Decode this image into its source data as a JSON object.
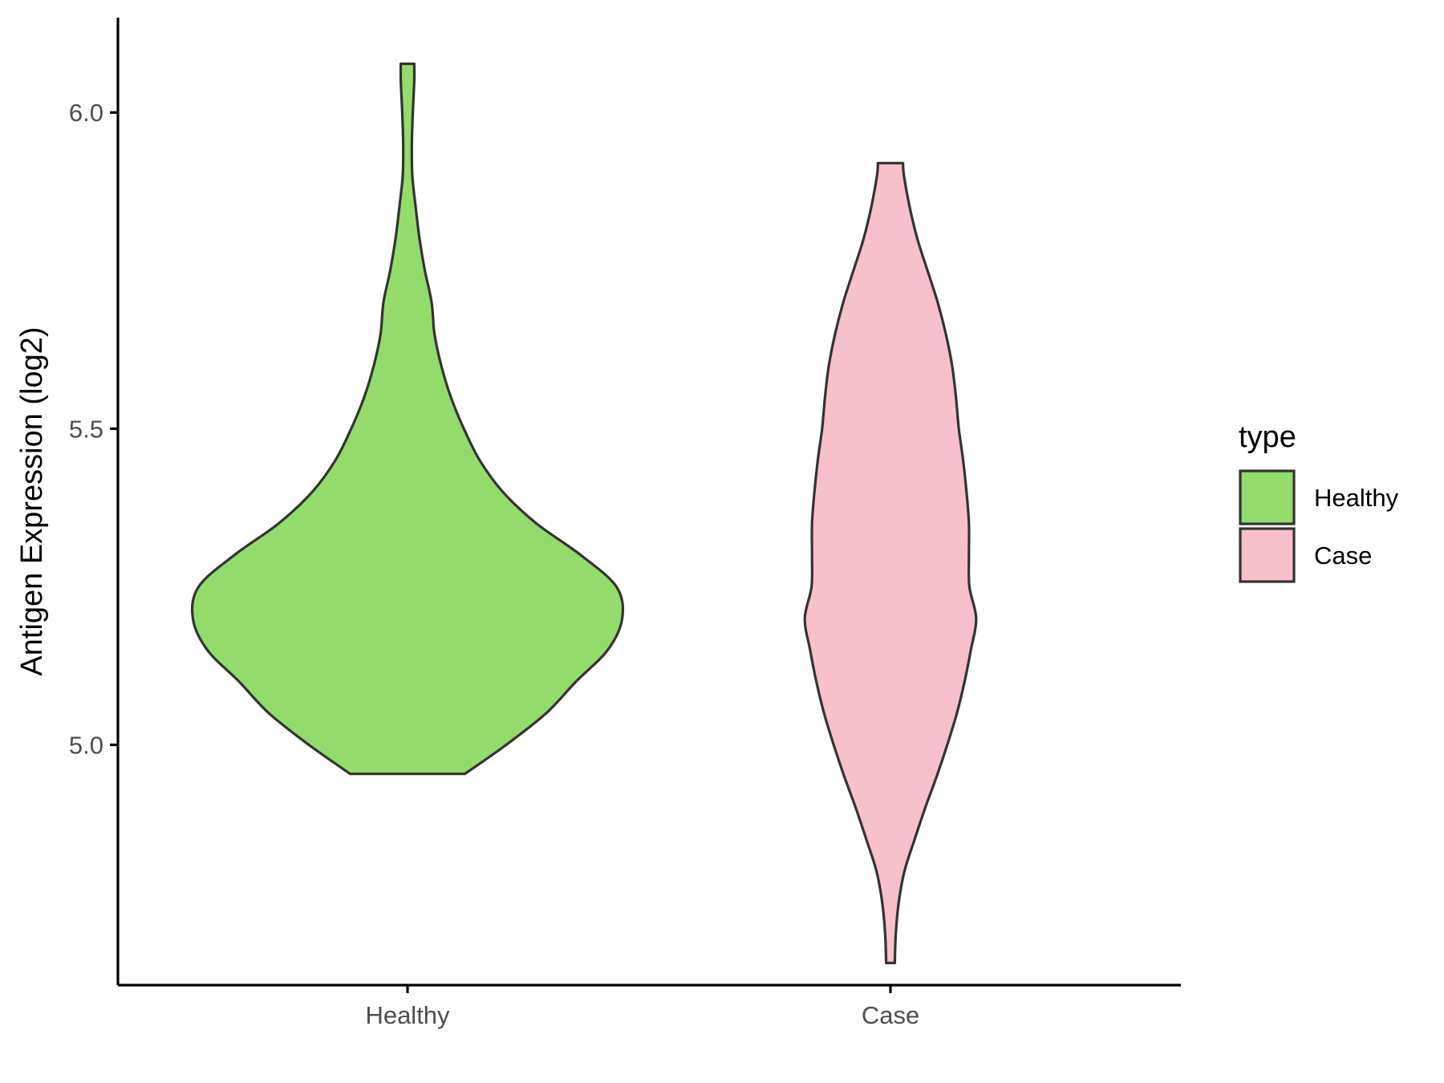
{
  "chart_data": {
    "type": "violin",
    "title": "",
    "xlabel": "",
    "ylabel": "Antigen Expression (log2)",
    "ylim": [
      4.62,
      6.15
    ],
    "yticks": [
      5.0,
      5.5,
      6.0
    ],
    "ytick_labels": [
      "5.0",
      "5.5",
      "6.0"
    ],
    "categories": [
      "Healthy",
      "Case"
    ],
    "grid": false,
    "legend": {
      "title": "type",
      "position": "right",
      "entries": [
        {
          "label": "Healthy",
          "color": "#93DC6B"
        },
        {
          "label": "Case",
          "color": "#F8C0CB"
        }
      ]
    },
    "series": [
      {
        "category": "Healthy",
        "color": "#93DC6B",
        "min": 4.954,
        "max": 6.077,
        "profile": [
          [
            4.954,
            0.119
          ],
          [
            5.0,
            0.205
          ],
          [
            5.05,
            0.288
          ],
          [
            5.1,
            0.35
          ],
          [
            5.15,
            0.416
          ],
          [
            5.2,
            0.446
          ],
          [
            5.25,
            0.434
          ],
          [
            5.3,
            0.36
          ],
          [
            5.35,
            0.268
          ],
          [
            5.4,
            0.198
          ],
          [
            5.45,
            0.15
          ],
          [
            5.5,
            0.117
          ],
          [
            5.55,
            0.09
          ],
          [
            5.6,
            0.07
          ],
          [
            5.65,
            0.056
          ],
          [
            5.7,
            0.05
          ],
          [
            5.75,
            0.036
          ],
          [
            5.8,
            0.025
          ],
          [
            5.85,
            0.017
          ],
          [
            5.9,
            0.01
          ],
          [
            5.95,
            0.009
          ],
          [
            6.0,
            0.011
          ],
          [
            6.05,
            0.014
          ],
          [
            6.077,
            0.014
          ]
        ]
      },
      {
        "category": "Case",
        "color": "#F8C0CB",
        "min": 4.655,
        "max": 5.92,
        "profile": [
          [
            4.655,
            0.009
          ],
          [
            4.7,
            0.011
          ],
          [
            4.75,
            0.017
          ],
          [
            4.8,
            0.029
          ],
          [
            4.85,
            0.05
          ],
          [
            4.9,
            0.072
          ],
          [
            4.95,
            0.096
          ],
          [
            5.0,
            0.118
          ],
          [
            5.05,
            0.138
          ],
          [
            5.1,
            0.154
          ],
          [
            5.15,
            0.167
          ],
          [
            5.2,
            0.178
          ],
          [
            5.25,
            0.164
          ],
          [
            5.3,
            0.163
          ],
          [
            5.35,
            0.163
          ],
          [
            5.4,
            0.158
          ],
          [
            5.45,
            0.151
          ],
          [
            5.5,
            0.142
          ],
          [
            5.55,
            0.136
          ],
          [
            5.6,
            0.128
          ],
          [
            5.65,
            0.115
          ],
          [
            5.7,
            0.098
          ],
          [
            5.75,
            0.077
          ],
          [
            5.8,
            0.056
          ],
          [
            5.85,
            0.04
          ],
          [
            5.9,
            0.028
          ],
          [
            5.92,
            0.026
          ]
        ]
      }
    ]
  }
}
